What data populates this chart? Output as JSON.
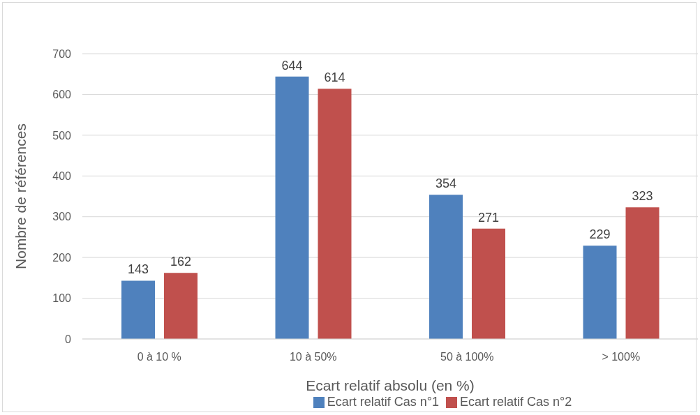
{
  "chart_data": {
    "type": "bar",
    "xlabel": "Ecart relatif absolu (en %)",
    "ylabel": "Nombre de références",
    "categories": [
      "0 à 10 %",
      "10 à 50%",
      "50 à 100%",
      "> 100%"
    ],
    "series": [
      {
        "name": "Ecart relatif Cas n°1",
        "color": "#4f81bd",
        "values": [
          143,
          644,
          354,
          229
        ]
      },
      {
        "name": "Ecart relatif Cas n°2",
        "color": "#c0504d",
        "values": [
          162,
          614,
          271,
          323
        ]
      }
    ],
    "ylim": [
      0,
      700
    ],
    "yticks": [
      0,
      100,
      200,
      300,
      400,
      500,
      600,
      700
    ],
    "grid": "y",
    "legend": "bottom",
    "data_labels": true
  }
}
